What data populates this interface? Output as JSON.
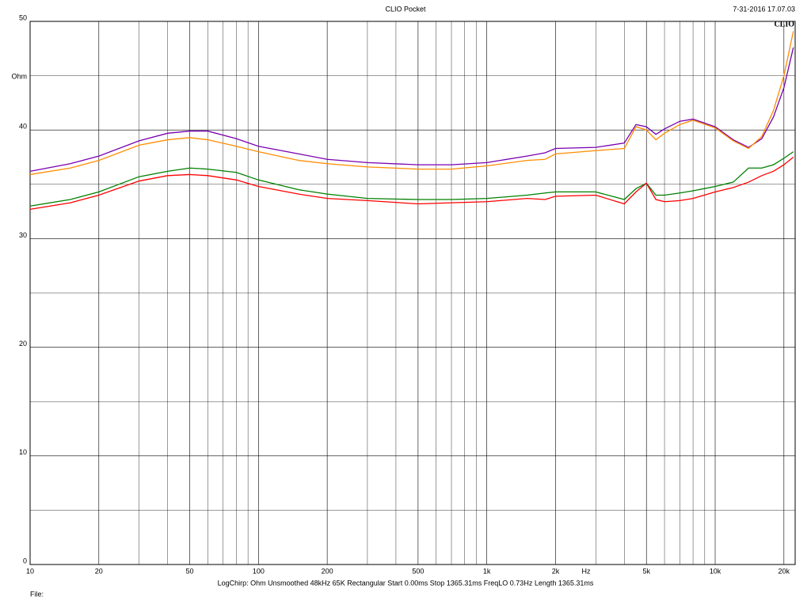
{
  "chart_data": {
    "type": "line",
    "title": "CLIO Pocket",
    "timestamp": "7-31-2016 17.07.03",
    "logo": "CLIO",
    "y_label": "Ohm",
    "x_label": "Hz",
    "footer": "LogChirp: Ohm   Unsmoothed   48kHz   65K   Rectangular   Start 0.00ms   Stop 1365.31ms   FreqLO 0.73Hz   Length 1365.31ms",
    "file_label": "File:",
    "x_log": true,
    "grid": true,
    "xlim": [
      10,
      22400
    ],
    "ylim": [
      0,
      50
    ],
    "xticks": [
      10,
      20,
      50,
      100,
      200,
      500,
      {
        "value": 1000,
        "label": "1k"
      },
      {
        "value": 2000,
        "label": "2k"
      },
      {
        "value": 5000,
        "label": "5k"
      },
      {
        "value": 10000,
        "label": "10k"
      },
      {
        "value": 20000,
        "label": "20k"
      }
    ],
    "x_minor_ticks": [
      30,
      40,
      60,
      70,
      80,
      90,
      300,
      400,
      600,
      700,
      800,
      900,
      3000,
      4000,
      6000,
      7000,
      8000,
      9000
    ],
    "yticks": [
      0,
      10,
      20,
      30,
      40,
      50
    ],
    "y_minor_ticks": [
      5,
      15,
      25,
      35,
      45
    ],
    "x": [
      10,
      15,
      20,
      30,
      40,
      50,
      60,
      80,
      100,
      150,
      200,
      300,
      500,
      700,
      1000,
      1500,
      1800,
      2000,
      3000,
      4000,
      4500,
      5000,
      5500,
      6000,
      7000,
      8000,
      10000,
      12000,
      14000,
      16000,
      18000,
      20000,
      22000
    ],
    "series": [
      {
        "color": "#7a00b0",
        "values": [
          36.2,
          36.9,
          37.6,
          39.0,
          39.7,
          39.9,
          39.9,
          39.2,
          38.5,
          37.8,
          37.3,
          37.0,
          36.8,
          36.8,
          37.0,
          37.6,
          37.9,
          38.3,
          38.4,
          38.8,
          40.5,
          40.3,
          39.6,
          40.1,
          40.8,
          41.0,
          40.3,
          39.1,
          38.4,
          39.2,
          41.2,
          43.9,
          47.6
        ]
      },
      {
        "color": "#ff8c00",
        "values": [
          35.9,
          36.5,
          37.2,
          38.6,
          39.1,
          39.3,
          39.1,
          38.5,
          38.0,
          37.2,
          36.9,
          36.6,
          36.4,
          36.4,
          36.7,
          37.2,
          37.3,
          37.8,
          38.1,
          38.3,
          40.3,
          40.0,
          39.1,
          39.7,
          40.5,
          40.9,
          40.2,
          39.0,
          38.3,
          39.4,
          41.8,
          45.0,
          49.1
        ]
      },
      {
        "color": "#008000",
        "values": [
          33.0,
          33.6,
          34.3,
          35.7,
          36.2,
          36.5,
          36.4,
          36.1,
          35.4,
          34.5,
          34.1,
          33.7,
          33.6,
          33.6,
          33.7,
          34.0,
          34.2,
          34.3,
          34.3,
          33.6,
          34.6,
          35.1,
          34.0,
          34.0,
          34.2,
          34.4,
          34.8,
          35.2,
          36.5,
          36.5,
          36.8,
          37.4,
          38.0
        ]
      },
      {
        "color": "#ff0000",
        "values": [
          32.7,
          33.3,
          34.0,
          35.3,
          35.8,
          35.9,
          35.8,
          35.4,
          34.8,
          34.1,
          33.7,
          33.5,
          33.2,
          33.3,
          33.4,
          33.7,
          33.6,
          33.9,
          34.0,
          33.2,
          34.3,
          35.1,
          33.6,
          33.4,
          33.5,
          33.7,
          34.3,
          34.7,
          35.2,
          35.8,
          36.2,
          36.8,
          37.5
        ]
      }
    ]
  }
}
